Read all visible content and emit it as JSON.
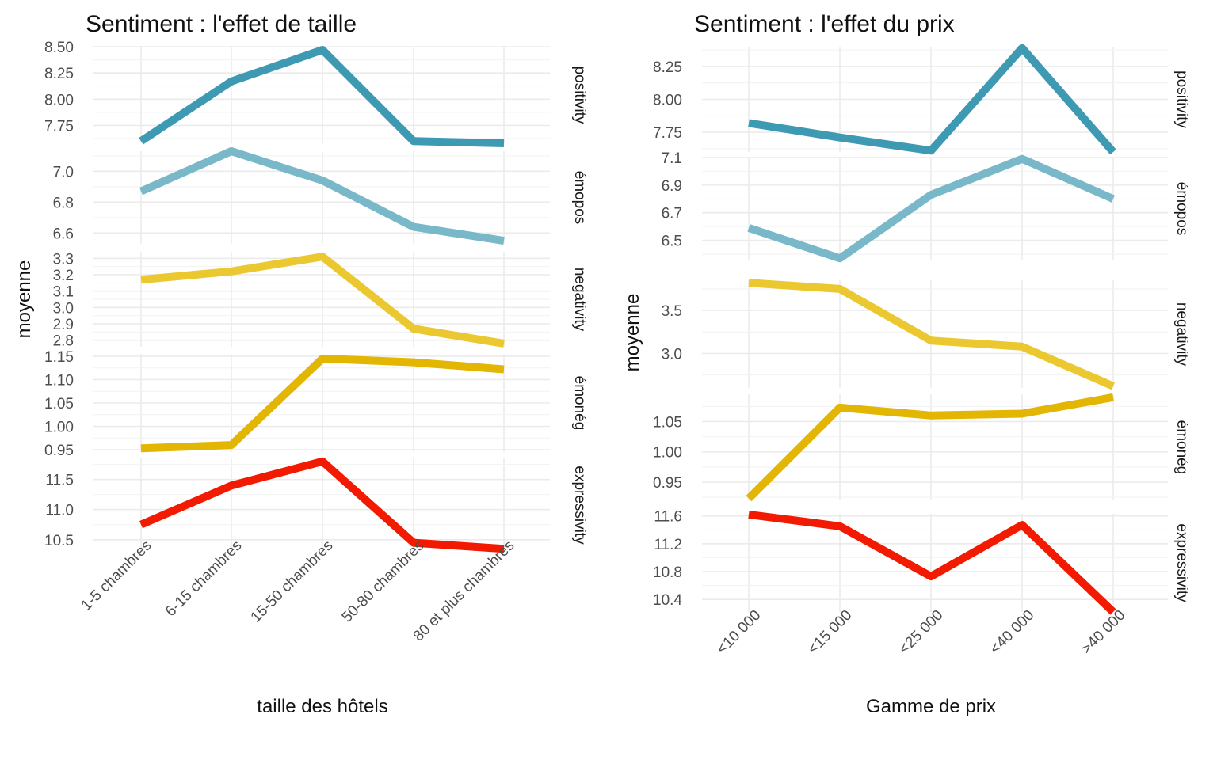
{
  "chart_data": [
    {
      "type": "line",
      "title": "Sentiment : l'effet de taille",
      "xlabel": "taille des hôtels",
      "ylabel": "moyenne",
      "categories": [
        "1-5 chambres",
        "6-15 chambres",
        "15-50 chambres",
        "50-80 chambres",
        "80 et plus chambres"
      ],
      "facets": [
        {
          "name": "positivity",
          "color": "#3e9ab3",
          "ylim": [
            7.58,
            8.5
          ],
          "ticks": [
            7.75,
            8.0,
            8.25,
            8.5
          ],
          "ytick_labels": [
            "7.75",
            "8.00",
            "8.25",
            "8.50"
          ],
          "values": [
            7.6,
            8.17,
            8.47,
            7.6,
            7.58
          ]
        },
        {
          "name": "émopos",
          "color": "#79b8c9",
          "ylim": [
            6.53,
            7.13
          ],
          "ticks": [
            6.6,
            6.8,
            7.0
          ],
          "ytick_labels": [
            "6.6",
            "6.8",
            "7.0"
          ],
          "values": [
            6.87,
            7.13,
            6.94,
            6.64,
            6.55
          ]
        },
        {
          "name": "negativity",
          "color": "#ecc830",
          "ylim": [
            2.76,
            3.34
          ],
          "ticks": [
            2.8,
            2.9,
            3.0,
            3.1,
            3.2,
            3.3
          ],
          "ytick_labels": [
            "2.8",
            "2.9",
            "3.0",
            "3.1",
            "3.2",
            "3.3"
          ],
          "values": [
            3.17,
            3.22,
            3.31,
            2.87,
            2.78
          ]
        },
        {
          "name": "émonég",
          "color": "#e2b603",
          "ylim": [
            0.945,
            1.155
          ],
          "ticks": [
            0.95,
            1.0,
            1.05,
            1.1,
            1.15
          ],
          "ytick_labels": [
            "0.95",
            "1.00",
            "1.05",
            "1.10",
            "1.15"
          ],
          "values": [
            0.953,
            0.96,
            1.145,
            1.137,
            1.122
          ]
        },
        {
          "name": "expressivity",
          "color": "#f21a00",
          "ylim": [
            10.3,
            11.85
          ],
          "ticks": [
            10.5,
            11.0,
            11.5
          ],
          "ytick_labels": [
            "10.5",
            "11.0",
            "11.5"
          ],
          "values": [
            10.75,
            11.4,
            11.8,
            10.45,
            10.35
          ]
        }
      ]
    },
    {
      "type": "line",
      "title": "Sentiment : l'effet du prix",
      "xlabel": "Gamme de prix",
      "ylabel": "moyenne",
      "categories": [
        "<10 000",
        "<15 000",
        "<25 000",
        "<40 000",
        ">40 000"
      ],
      "facets": [
        {
          "name": "positivity",
          "color": "#3e9ab3",
          "ylim": [
            7.6,
            8.4
          ],
          "ticks": [
            7.75,
            8.0,
            8.25
          ],
          "ytick_labels": [
            "7.75",
            "8.00",
            "8.25"
          ],
          "values": [
            7.82,
            7.71,
            7.61,
            8.39,
            7.6
          ]
        },
        {
          "name": "émopos",
          "color": "#79b8c9",
          "ylim": [
            6.36,
            7.1
          ],
          "ticks": [
            6.5,
            6.7,
            6.9,
            7.1
          ],
          "ytick_labels": [
            "6.5",
            "6.7",
            "6.9",
            "7.1"
          ],
          "values": [
            6.59,
            6.37,
            6.83,
            7.09,
            6.8
          ]
        },
        {
          "name": "negativity",
          "color": "#ecc830",
          "ylim": [
            2.6,
            3.85
          ],
          "ticks": [
            3.0,
            3.5
          ],
          "ytick_labels": [
            "3.0",
            "3.5"
          ],
          "values": [
            3.82,
            3.75,
            3.15,
            3.08,
            2.62
          ]
        },
        {
          "name": "émonég",
          "color": "#e2b603",
          "ylim": [
            0.92,
            1.095
          ],
          "ticks": [
            0.95,
            1.0,
            1.05
          ],
          "ytick_labels": [
            "0.95",
            "1.00",
            "1.05"
          ],
          "values": [
            0.923,
            1.073,
            1.06,
            1.063,
            1.09
          ]
        },
        {
          "name": "expressivity",
          "color": "#f21a00",
          "ylim": [
            10.22,
            11.63
          ],
          "ticks": [
            10.4,
            10.8,
            11.2,
            11.6
          ],
          "ytick_labels": [
            "10.4",
            "10.8",
            "11.2",
            "11.6"
          ],
          "values": [
            11.62,
            11.45,
            10.73,
            11.47,
            10.22
          ]
        }
      ]
    }
  ]
}
